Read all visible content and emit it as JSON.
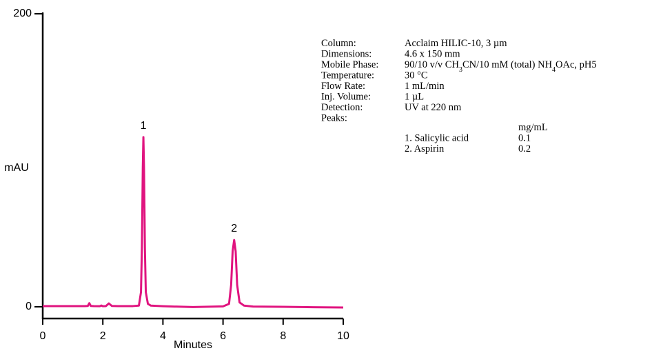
{
  "chart_data": {
    "type": "line",
    "x_label": "Minutes",
    "y_label": "mAU",
    "xlim": [
      0,
      10
    ],
    "xticks": [
      0,
      2,
      4,
      6,
      8,
      10
    ],
    "ylim": [
      -8,
      200
    ],
    "yticks": [
      0,
      200
    ],
    "x": [
      0,
      0.5,
      1.0,
      1.4,
      1.5,
      1.55,
      1.6,
      1.7,
      1.9,
      1.95,
      2.0,
      2.1,
      2.2,
      2.3,
      2.5,
      3.0,
      3.2,
      3.27,
      3.3,
      3.33,
      3.35,
      3.37,
      3.4,
      3.43,
      3.5,
      3.6,
      4.0,
      5.0,
      6.0,
      6.2,
      6.27,
      6.32,
      6.37,
      6.42,
      6.47,
      6.55,
      6.7,
      7.0,
      8.0,
      9.0,
      10.0
    ],
    "series": [
      {
        "color": "#e0147f",
        "values": [
          0.5,
          0.5,
          0.5,
          0.5,
          0.6,
          2.5,
          0.6,
          0.5,
          0.4,
          0.9,
          0.4,
          0.5,
          2.3,
          0.6,
          0.5,
          0.5,
          0.8,
          10,
          40,
          95,
          115.8,
          95,
          40,
          10,
          2,
          0.8,
          0.4,
          -0.2,
          0.3,
          2,
          15,
          38,
          45.6,
          38,
          15,
          3,
          0.8,
          0.2,
          0,
          -0.3,
          -0.5
        ]
      }
    ],
    "annotations": [
      {
        "text": "1",
        "x": 3.35,
        "y": 115.8
      },
      {
        "text": "2",
        "x": 6.37,
        "y": 45.6
      }
    ],
    "info": {
      "rows": [
        {
          "label": "Column:",
          "value": [
            {
              "text": "Acclaim HILIC-10, 3 µm"
            }
          ]
        },
        {
          "label": "Dimensions:",
          "value": [
            {
              "text": "4.6 x 150 mm"
            }
          ]
        },
        {
          "label": "Mobile Phase:",
          "value": [
            {
              "text": "90/10 v/v CH"
            },
            {
              "text": "3",
              "sub": true
            },
            {
              "text": "CN/10 mM (total) NH"
            },
            {
              "text": "4",
              "sub": true
            },
            {
              "text": "OAc, pH5"
            }
          ]
        },
        {
          "label": "Temperature:",
          "value": [
            {
              "text": "30 °C"
            }
          ]
        },
        {
          "label": "Flow Rate:",
          "value": [
            {
              "text": "1 mL/min"
            }
          ]
        },
        {
          "label": "Inj. Volume:",
          "value": [
            {
              "text": "1 µL"
            }
          ]
        },
        {
          "label": "Detection:",
          "value": [
            {
              "text": "UV at 220 nm"
            }
          ]
        },
        {
          "label": "Peaks:",
          "value": []
        }
      ],
      "units_header": "mg/mL",
      "peaks": [
        {
          "name": "1. Salicylic acid",
          "conc": 0.1
        },
        {
          "name": "2. Aspirin",
          "conc": 0.2
        }
      ]
    }
  }
}
